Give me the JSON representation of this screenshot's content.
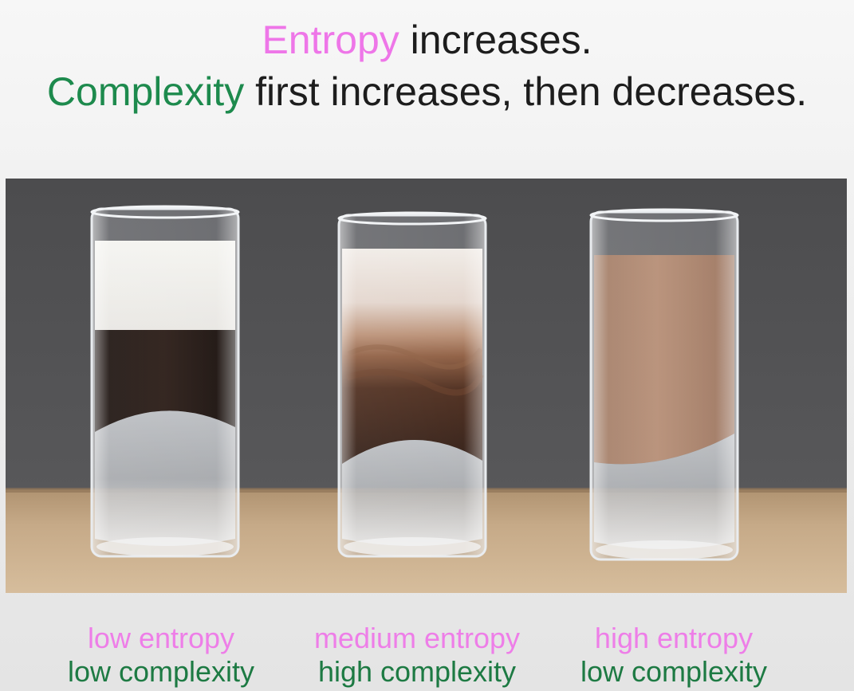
{
  "title": {
    "line1_keyword": "Entropy",
    "line1_rest": " increases.",
    "line2_keyword": "Complexity",
    "line2_rest": " first increases, then decreases."
  },
  "colors": {
    "entropy": "#ee76e8",
    "complexity": "#1d8a4d"
  },
  "glasses": [
    {
      "entropy": "low entropy",
      "complexity": "low complexity"
    },
    {
      "entropy": "medium entropy",
      "complexity": "high complexity"
    },
    {
      "entropy": "high entropy",
      "complexity": "low complexity"
    }
  ]
}
